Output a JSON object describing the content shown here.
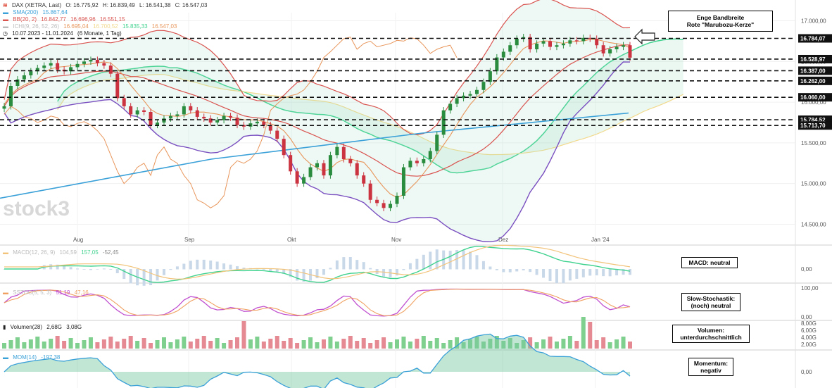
{
  "legend": {
    "main": {
      "symbol": "DAX (XETRA, Last)",
      "open": "O: 16.775,92",
      "high": "H: 16.839,49",
      "low": "L: 16.541,38",
      "close": "C: 16.547,03"
    },
    "sma": {
      "label": "SMA(200)",
      "value": "15.867,64"
    },
    "bb": {
      "label": "BB(20, 2)",
      "v1": "16.842,77",
      "v2": "16.696,96",
      "v3": "16.551,15"
    },
    "ichimoku": {
      "label": "ICHI(9, 26, 52, 26)",
      "v1": "16.695,04",
      "v2": "16.700,52",
      "v3": "15.835,33",
      "v4": "16.547,03"
    },
    "period": {
      "range": "10.07.2023 - 11.01.2024",
      "detail": "(6 Monate, 1 Tag)"
    },
    "macd": {
      "label": "MACD(12, 26, 9)",
      "v1": "104,59",
      "v2": "157,05",
      "v3": "-52,45"
    },
    "stoch": {
      "label": "SSTOC(5, 5, 3)",
      "v1": "51,19",
      "v2": "47,16"
    },
    "volume": {
      "label": "Volumen(28)",
      "v1": "2,68G",
      "v2": "3,08G"
    },
    "mom": {
      "label": "MOM(14)",
      "v1": "-197,38"
    }
  },
  "watermark": "stock3",
  "annotations": {
    "bandwidth": [
      "Enge Bandbreite",
      "Rote \"Marubozu-Kerze\""
    ],
    "macd": [
      "MACD: neutral"
    ],
    "stoch": [
      "Slow-Stochastik:",
      "(noch) neutral"
    ],
    "volume": [
      "Volumen:",
      "unterdurchschnittlich"
    ],
    "mom": [
      "Momentum:",
      "negativ"
    ]
  },
  "colors": {
    "up": "#2a8c3e",
    "down": "#cc3340",
    "sma": "#3aa0d8",
    "bb": "#d9534f",
    "tenkan": "#e8955a",
    "kijun": "#7a4fc0",
    "spanA": "#3fd28e",
    "spanB": "#f2d98b",
    "macd": "#3fd28e",
    "signal": "#f2c37a",
    "stochK": "#c050d0",
    "stochD": "#f0a060"
  },
  "chart_data": [
    {
      "type": "candlestick",
      "x_ticks": [
        "Aug",
        "Sep",
        "Okt",
        "Nov",
        "Dez",
        "Jan '24"
      ],
      "y_ticks": [
        "17.000,00",
        "16.500,00",
        "16.000,00",
        "15.500,00",
        "15.000,00",
        "14.500,00"
      ],
      "ylim": [
        14400,
        17100
      ],
      "ohlc_close": [
        15950,
        16200,
        16280,
        16330,
        16380,
        16420,
        16450,
        16480,
        16400,
        16380,
        16430,
        16470,
        16500,
        16520,
        16480,
        16450,
        16350,
        16050,
        15950,
        15850,
        15900,
        15880,
        15720,
        15750,
        15800,
        15830,
        15850,
        15950,
        15900,
        15820,
        15800,
        15750,
        15780,
        15830,
        15810,
        15720,
        15700,
        15740,
        15760,
        15720,
        15650,
        15550,
        15350,
        15150,
        15000,
        15080,
        15200,
        15250,
        15100,
        15350,
        15450,
        15300,
        15250,
        15100,
        15000,
        14800,
        14760,
        14700,
        14750,
        14850,
        15200,
        15280,
        15250,
        15300,
        15400,
        15600,
        15900,
        15980,
        16050,
        16080,
        16100,
        16150,
        16250,
        16380,
        16550,
        16620,
        16700,
        16780,
        16800,
        16650,
        16720,
        16750,
        16680,
        16700,
        16720,
        16760,
        16750,
        16790,
        16780,
        16700,
        16600,
        16650,
        16680,
        16700,
        16547
      ],
      "horizontal_levels": [
        "16.784,07",
        "16.528,97",
        "16.387,00",
        "16.262,00",
        "16.060,00",
        "15.784,52",
        "15.713,70"
      ],
      "grid": true
    },
    {
      "type": "line",
      "name": "MACD",
      "y_ticks": [
        "0,00"
      ]
    },
    {
      "type": "line",
      "name": "SSTOC",
      "y_ticks": [
        "100,00",
        "0,00"
      ]
    },
    {
      "type": "bar",
      "name": "Volumen",
      "y_ticks": [
        "8,00G",
        "6,00G",
        "4,00G",
        "2,00G"
      ]
    },
    {
      "type": "area",
      "name": "MOM",
      "y_ticks": [
        "0,00"
      ]
    }
  ]
}
